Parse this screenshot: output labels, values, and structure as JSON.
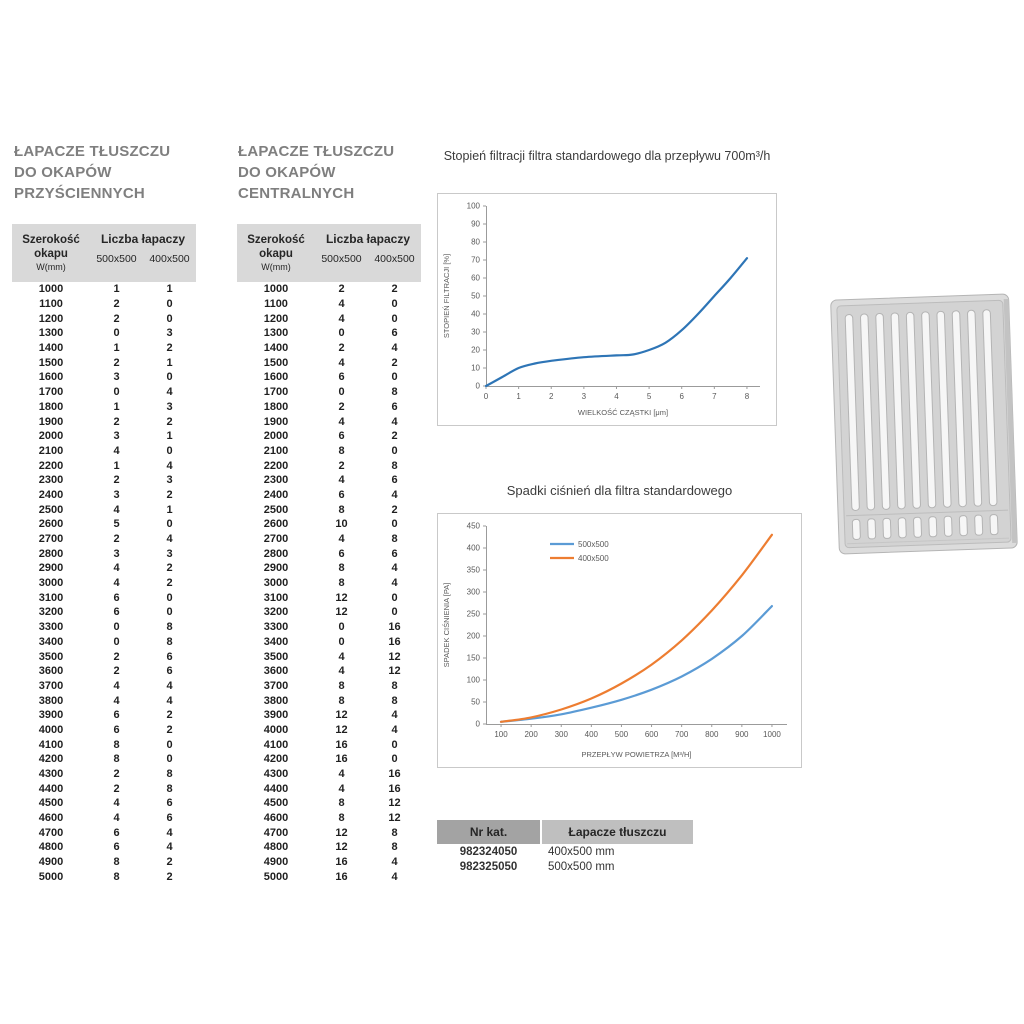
{
  "sections": {
    "wall_table_title": "ŁAPACZE TŁUSZCZU\nDO OKAPÓW\nPRZYŚCIENNYCH",
    "central_table_title": "ŁAPACZE TŁUSZCZU\nDO OKAPÓW\nCENTRALNYCH"
  },
  "table_header": {
    "width_label": "Szerokość\nokapu",
    "width_unit": "W(mm)",
    "group_label": "Liczba łapaczy",
    "col1": "500x500",
    "col2": "400x500"
  },
  "tables": {
    "wall": {
      "rows": [
        [
          1000,
          1,
          1
        ],
        [
          1100,
          2,
          0
        ],
        [
          1200,
          2,
          0
        ],
        [
          1300,
          0,
          3
        ],
        [
          1400,
          1,
          2
        ],
        [
          1500,
          2,
          1
        ],
        [
          1600,
          3,
          0
        ],
        [
          1700,
          0,
          4
        ],
        [
          1800,
          1,
          3
        ],
        [
          1900,
          2,
          2
        ],
        [
          2000,
          3,
          1
        ],
        [
          2100,
          4,
          0
        ],
        [
          2200,
          1,
          4
        ],
        [
          2300,
          2,
          3
        ],
        [
          2400,
          3,
          2
        ],
        [
          2500,
          4,
          1
        ],
        [
          2600,
          5,
          0
        ],
        [
          2700,
          2,
          4
        ],
        [
          2800,
          3,
          3
        ],
        [
          2900,
          4,
          2
        ],
        [
          3000,
          4,
          2
        ],
        [
          3100,
          6,
          0
        ],
        [
          3200,
          6,
          0
        ],
        [
          3300,
          0,
          8
        ],
        [
          3400,
          0,
          8
        ],
        [
          3500,
          2,
          6
        ],
        [
          3600,
          2,
          6
        ],
        [
          3700,
          4,
          4
        ],
        [
          3800,
          4,
          4
        ],
        [
          3900,
          6,
          2
        ],
        [
          4000,
          6,
          2
        ],
        [
          4100,
          8,
          0
        ],
        [
          4200,
          8,
          0
        ],
        [
          4300,
          2,
          8
        ],
        [
          4400,
          2,
          8
        ],
        [
          4500,
          4,
          6
        ],
        [
          4600,
          4,
          6
        ],
        [
          4700,
          6,
          4
        ],
        [
          4800,
          6,
          4
        ],
        [
          4900,
          8,
          2
        ],
        [
          5000,
          8,
          2
        ]
      ]
    },
    "central": {
      "rows": [
        [
          1000,
          2,
          2
        ],
        [
          1100,
          4,
          0
        ],
        [
          1200,
          4,
          0
        ],
        [
          1300,
          0,
          6
        ],
        [
          1400,
          2,
          4
        ],
        [
          1500,
          4,
          2
        ],
        [
          1600,
          6,
          0
        ],
        [
          1700,
          0,
          8
        ],
        [
          1800,
          2,
          6
        ],
        [
          1900,
          4,
          4
        ],
        [
          2000,
          6,
          2
        ],
        [
          2100,
          8,
          0
        ],
        [
          2200,
          2,
          8
        ],
        [
          2300,
          4,
          6
        ],
        [
          2400,
          6,
          4
        ],
        [
          2500,
          8,
          2
        ],
        [
          2600,
          10,
          0
        ],
        [
          2700,
          4,
          8
        ],
        [
          2800,
          6,
          6
        ],
        [
          2900,
          8,
          4
        ],
        [
          3000,
          8,
          4
        ],
        [
          3100,
          12,
          0
        ],
        [
          3200,
          12,
          0
        ],
        [
          3300,
          0,
          16
        ],
        [
          3400,
          0,
          16
        ],
        [
          3500,
          4,
          12
        ],
        [
          3600,
          4,
          12
        ],
        [
          3700,
          8,
          8
        ],
        [
          3800,
          8,
          8
        ],
        [
          3900,
          12,
          4
        ],
        [
          4000,
          12,
          4
        ],
        [
          4100,
          16,
          0
        ],
        [
          4200,
          16,
          0
        ],
        [
          4300,
          4,
          16
        ],
        [
          4400,
          4,
          16
        ],
        [
          4500,
          8,
          12
        ],
        [
          4600,
          8,
          12
        ],
        [
          4700,
          12,
          8
        ],
        [
          4800,
          12,
          8
        ],
        [
          4900,
          16,
          4
        ],
        [
          5000,
          16,
          4
        ]
      ]
    }
  },
  "chart_data": [
    {
      "type": "line",
      "title": "Stopień filtracji filtra standardowego dla przepływu 700m³/h",
      "xlabel": "WIELKOŚĆ CZĄSTKI [μm]",
      "ylabel": "STOPIEŃ FILTRACJI [%]",
      "xlim": [
        0,
        8.4
      ],
      "ylim": [
        0,
        100
      ],
      "xticks": [
        0,
        1,
        2,
        3,
        4,
        5,
        6,
        7,
        8
      ],
      "yticks": [
        0,
        10,
        20,
        30,
        40,
        50,
        60,
        70,
        80,
        90,
        100
      ],
      "grid": false,
      "series": [
        {
          "name": "stopień filtracji",
          "color": "#2e75b6",
          "x": [
            0,
            0.5,
            1,
            1.5,
            2,
            3,
            4,
            4.5,
            5,
            5.5,
            6,
            6.5,
            7,
            7.5,
            8
          ],
          "values": [
            0,
            5,
            10,
            12.5,
            14,
            16,
            17,
            17.5,
            20,
            24,
            31,
            40,
            50,
            60,
            71
          ]
        }
      ]
    },
    {
      "type": "line",
      "title": "Spadki ciśnień dla filtra standardowego",
      "xlabel": "PRZEPŁYW POWIETRZA [M³/H]",
      "ylabel": "SPADEK CIŚNIENIA [PA]",
      "xlim": [
        50,
        1050
      ],
      "ylim": [
        0,
        450
      ],
      "xticks": [
        100,
        200,
        300,
        400,
        500,
        600,
        700,
        800,
        900,
        1000
      ],
      "yticks": [
        0,
        50,
        100,
        150,
        200,
        250,
        300,
        350,
        400,
        450
      ],
      "grid": false,
      "legend_position": "top-left-inside",
      "legend": [
        {
          "label": "500x500",
          "color": "#5b9bd5"
        },
        {
          "label": "400x500",
          "color": "#ed7d31"
        }
      ],
      "series": [
        {
          "name": "500x500",
          "color": "#5b9bd5",
          "x": [
            100,
            200,
            300,
            400,
            500,
            600,
            700,
            800,
            900,
            1000
          ],
          "values": [
            5,
            12,
            22,
            37,
            55,
            78,
            108,
            148,
            200,
            268
          ]
        },
        {
          "name": "400x500",
          "color": "#ed7d31",
          "x": [
            100,
            200,
            300,
            400,
            500,
            600,
            700,
            800,
            900,
            1000
          ],
          "values": [
            5,
            15,
            33,
            58,
            92,
            135,
            190,
            258,
            338,
            430
          ]
        }
      ]
    }
  ],
  "catalog": {
    "headers": [
      "Nr kat.",
      "Łapacze tłuszczu"
    ],
    "rows": [
      [
        "982324050",
        "400x500 mm"
      ],
      [
        "982325050",
        "500x500 mm"
      ]
    ]
  }
}
